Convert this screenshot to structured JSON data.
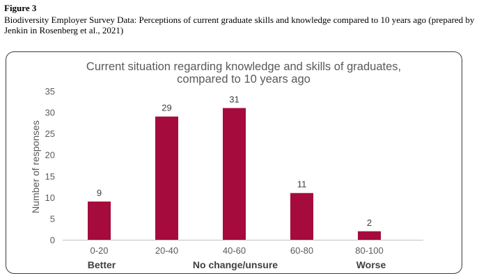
{
  "figure": {
    "label": "Figure 3",
    "caption": "Biodiversity Employer Survey Data: Perceptions of current graduate skills and knowledge compared to 10 years ago (prepared by Jenkin in Rosenberg et al., 2021)"
  },
  "chart_data": {
    "type": "bar",
    "title_lines": [
      "Current situation regarding knowledge and skills of graduates,",
      "compared to 10 years ago"
    ],
    "categories": [
      "0-20",
      "20-40",
      "40-60",
      "60-80",
      "80-100"
    ],
    "values": [
      9,
      29,
      31,
      11,
      2
    ],
    "ylabel": "Number of responses",
    "xlabel": "",
    "ylim": [
      0,
      35
    ],
    "yticks": [
      0,
      5,
      10,
      15,
      20,
      25,
      30,
      35
    ],
    "group_labels": [
      "Better",
      "No change/unsure",
      "Worse"
    ],
    "bar_color": "#A50B3C",
    "grid": false,
    "legend": "none"
  }
}
